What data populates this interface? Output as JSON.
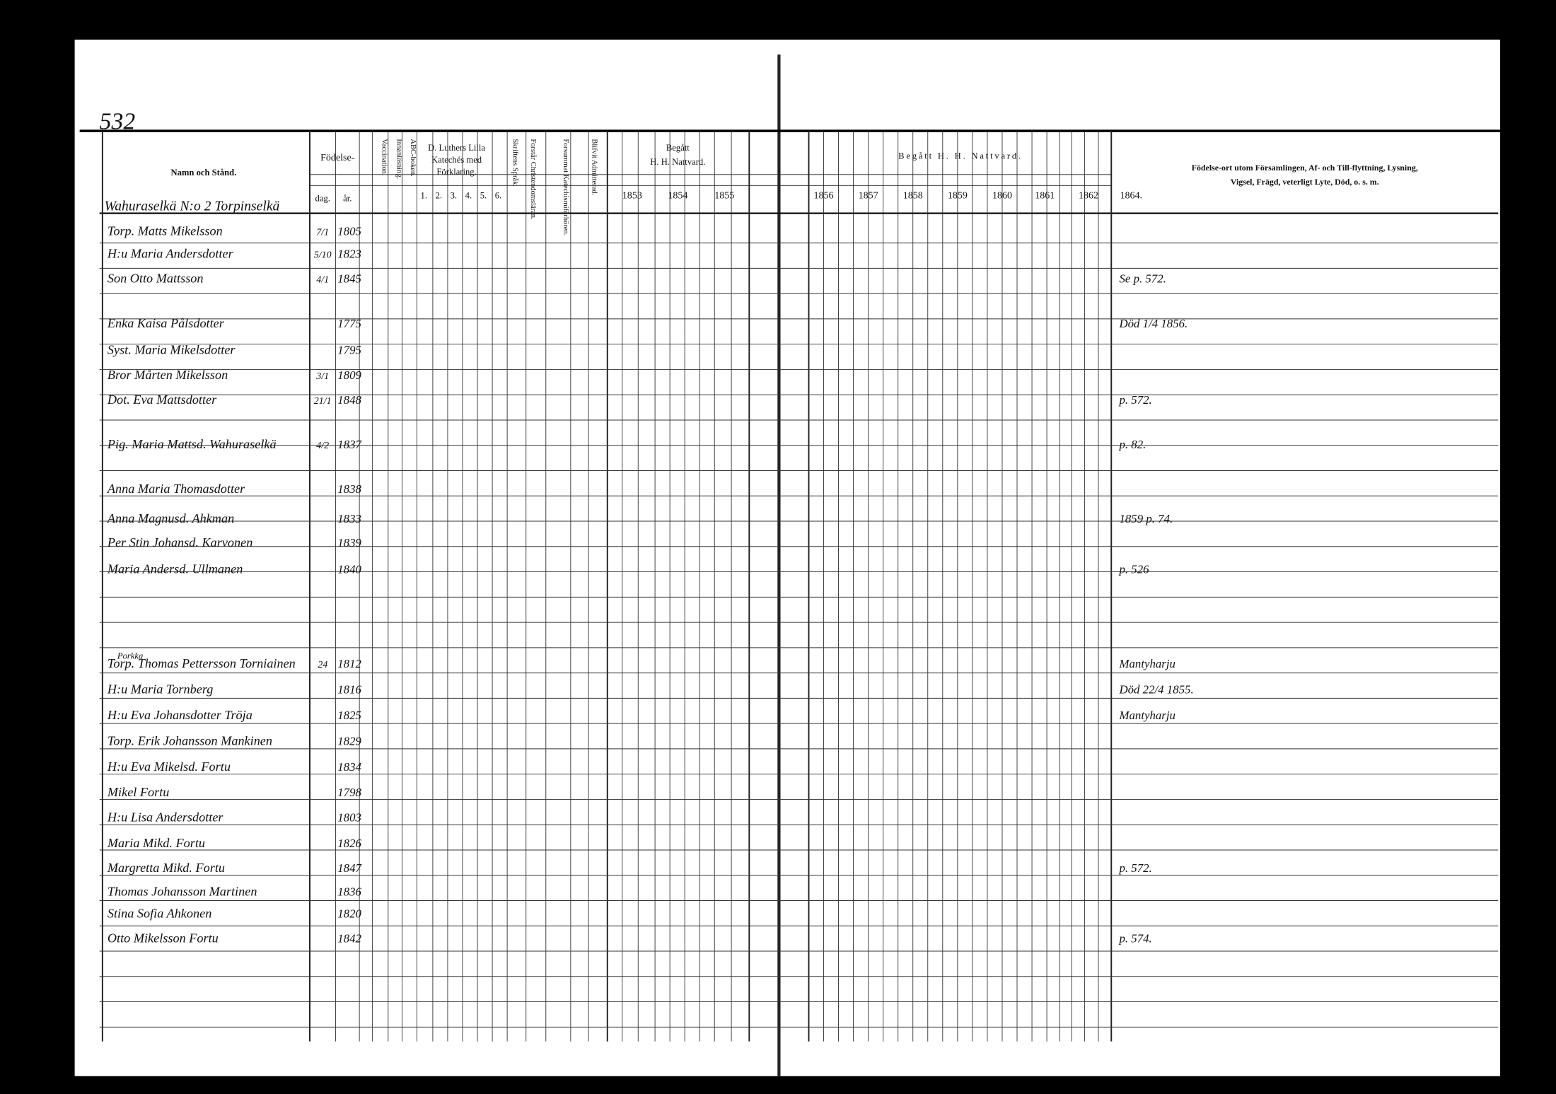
{
  "page_number": "532",
  "header": {
    "name": "Namn och Stånd.",
    "birth": "Födelse-",
    "birth_day": "dag.",
    "birth_year": "år.",
    "vaccination": "Vaccination.",
    "reading": "Innanläsning.",
    "abc": "ABC-boken.",
    "catechism": [
      "D. Luthers Lilla",
      "Katechés med",
      "Förklaring."
    ],
    "catechism_parts": [
      "1.",
      "2.",
      "3.",
      "4.",
      "5.",
      "6."
    ],
    "scripture": "Skriftens Språk.",
    "doctrine": "Forstår Christendomsläran.",
    "missed": "Forsummat Katechismiförhören.",
    "admitted": "Blifvit Admitterad.",
    "communion_left": [
      "Begått",
      "H. H. Nattvard."
    ],
    "years_left": [
      "1853",
      "1854",
      "1855"
    ],
    "communion_right": "Begått H. H. Nattvard.",
    "years_right": [
      "1856",
      "1857",
      "1858",
      "1859",
      "1860",
      "1861",
      "1862",
      "1864."
    ],
    "remarks": [
      "Födelse-ort utom Församlingen, Af- och Till-flyttning, Lysning,",
      "Vigsel, Frägd, veterligt Lyte, Död, o. s. m."
    ]
  },
  "farm_1": "Wahuraselkä N:o 2 Torpinselkä",
  "rows_1": [
    {
      "name": "Torp. Matts Mikelsson",
      "day": "7/1",
      "year": "1805"
    },
    {
      "name": "H:u Maria Andersdotter",
      "day": "5/10",
      "year": "1823"
    },
    {
      "name": "Son Otto Mattsson",
      "day": "4/1",
      "year": "1845",
      "note": "Se p. 572."
    },
    {
      "name": "Enka Kaisa Pålsdotter",
      "year": "1775",
      "note": "Död 1/4 1856."
    },
    {
      "name": "Syst. Maria Mikelsdotter",
      "year": "1795"
    },
    {
      "name": "Bror Mårten Mikelsson",
      "day": "3/1",
      "year": "1809"
    },
    {
      "name": "Dot. Eva Mattsdotter",
      "day": "21/1",
      "year": "1848",
      "note": "p. 572."
    },
    {
      "name": "Pig. Maria Mattsd. Wahuraselkä",
      "day": "4/2",
      "year": "1837",
      "note": "p. 82."
    },
    {
      "name": "Anna Maria Thomasdotter",
      "year": "1838"
    },
    {
      "name": "Anna Magnusd. Ahkman",
      "year": "1833",
      "note": "1859 p. 74."
    },
    {
      "name": "Per Stin Johansd. Karvonen",
      "year": "1839"
    },
    {
      "name": "Maria Andersd. Ullmanen",
      "year": "1840",
      "note": "p. 526"
    }
  ],
  "farm_2": "Porkka",
  "rows_2": [
    {
      "name": "Torp. Thomas Pettersson Torniainen",
      "day": "24",
      "year": "1812",
      "note": "Mantyharju"
    },
    {
      "name": "H:u Maria Tornberg",
      "year": "1816",
      "note": "Död 22/4 1855."
    },
    {
      "name": "H:u Eva Johansdotter Tröja",
      "year": "1825",
      "note": "Mantyharju"
    },
    {
      "name": "Torp. Erik Johansson Mankinen",
      "year": "1829"
    },
    {
      "name": "H:u Eva Mikelsd. Fortu",
      "year": "1834"
    },
    {
      "name": "Mikel Fortu",
      "year": "1798"
    },
    {
      "name": "H:u Lisa Andersdotter",
      "year": "1803"
    },
    {
      "name": "Maria Mikd. Fortu",
      "year": "1826"
    },
    {
      "name": "Margretta Mikd. Fortu",
      "year": "1847",
      "note": "p. 572."
    },
    {
      "name": "Thomas Johansson Martinen",
      "year": "1836"
    },
    {
      "name": "Stina Sofia Ahkonen",
      "year": "1820"
    },
    {
      "name": "Otto Mikelsson Fortu",
      "year": "1842",
      "note": "p. 574."
    }
  ]
}
